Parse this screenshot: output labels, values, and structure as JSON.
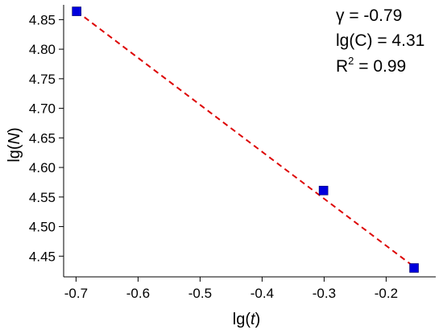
{
  "chart_data": {
    "type": "scatter",
    "title": "",
    "xlabel": {
      "prefix": "lg(",
      "var": "t",
      "suffix": ")"
    },
    "ylabel": {
      "prefix": "lg(",
      "var": "N",
      "suffix": ")"
    },
    "xlim": [
      -0.72,
      -0.12
    ],
    "ylim": [
      4.415,
      4.875
    ],
    "x_ticks": [
      -0.7,
      -0.6,
      -0.5,
      -0.4,
      -0.3,
      -0.2
    ],
    "x_tick_labels": [
      "-0.7",
      "-0.6",
      "-0.5",
      "-0.4",
      "-0.3",
      "-0.2"
    ],
    "y_ticks": [
      4.45,
      4.5,
      4.55,
      4.6,
      4.65,
      4.7,
      4.75,
      4.8,
      4.85
    ],
    "y_tick_labels": [
      "4.45",
      "4.50",
      "4.55",
      "4.60",
      "4.65",
      "4.70",
      "4.75",
      "4.80",
      "4.85"
    ],
    "grid": false,
    "series": [
      {
        "marker": "square",
        "color": "#0000dd",
        "points": [
          {
            "x": -0.699,
            "y": 4.864
          },
          {
            "x": -0.301,
            "y": 4.561
          },
          {
            "x": -0.155,
            "y": 4.43
          }
        ]
      }
    ],
    "fit_line": {
      "style": "dashed",
      "color": "#dd0000",
      "x": [
        -0.699,
        -0.155
      ],
      "y": [
        4.864,
        4.432
      ]
    },
    "annotations": {
      "gamma": "γ = -0.79",
      "lgc": "lg(C) = 4.31",
      "r2_prefix": "R",
      "r2_exp": "2",
      "r2_suffix": " = 0.99"
    }
  }
}
